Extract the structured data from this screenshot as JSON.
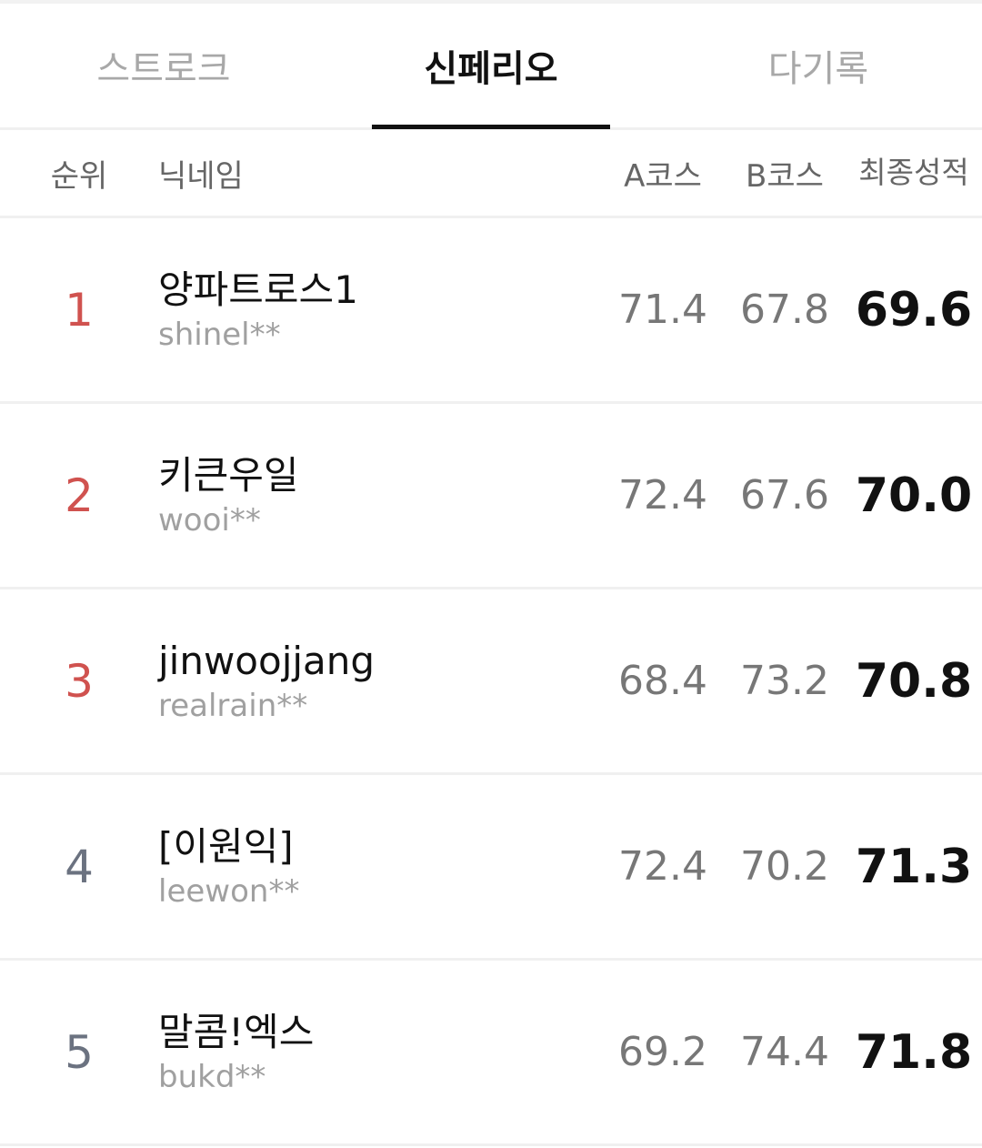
{
  "tabs": [
    {
      "label": "스트로크",
      "active": false
    },
    {
      "label": "신페리오",
      "active": true
    },
    {
      "label": "다기록",
      "active": false
    }
  ],
  "header": {
    "rank": "순위",
    "nickname": "닉네임",
    "a_course": "A코스",
    "b_course": "B코스",
    "final": "최종성적"
  },
  "colors": {
    "top_rank": "#d0524f",
    "other_rank": "#6b7280"
  },
  "rows": [
    {
      "rank": "1",
      "nickname": "양파트로스1",
      "user_id": "shinel**",
      "a": "71.4",
      "b": "67.8",
      "final": "69.6"
    },
    {
      "rank": "2",
      "nickname": "키큰우일",
      "user_id": "wooi**",
      "a": "72.4",
      "b": "67.6",
      "final": "70.0"
    },
    {
      "rank": "3",
      "nickname": "jinwoojjang",
      "user_id": "realrain**",
      "a": "68.4",
      "b": "73.2",
      "final": "70.8"
    },
    {
      "rank": "4",
      "nickname": "[이원익]",
      "user_id": "leewon**",
      "a": "72.4",
      "b": "70.2",
      "final": "71.3"
    },
    {
      "rank": "5",
      "nickname": "말콤!엑스",
      "user_id": "bukd**",
      "a": "69.2",
      "b": "74.4",
      "final": "71.8"
    }
  ]
}
